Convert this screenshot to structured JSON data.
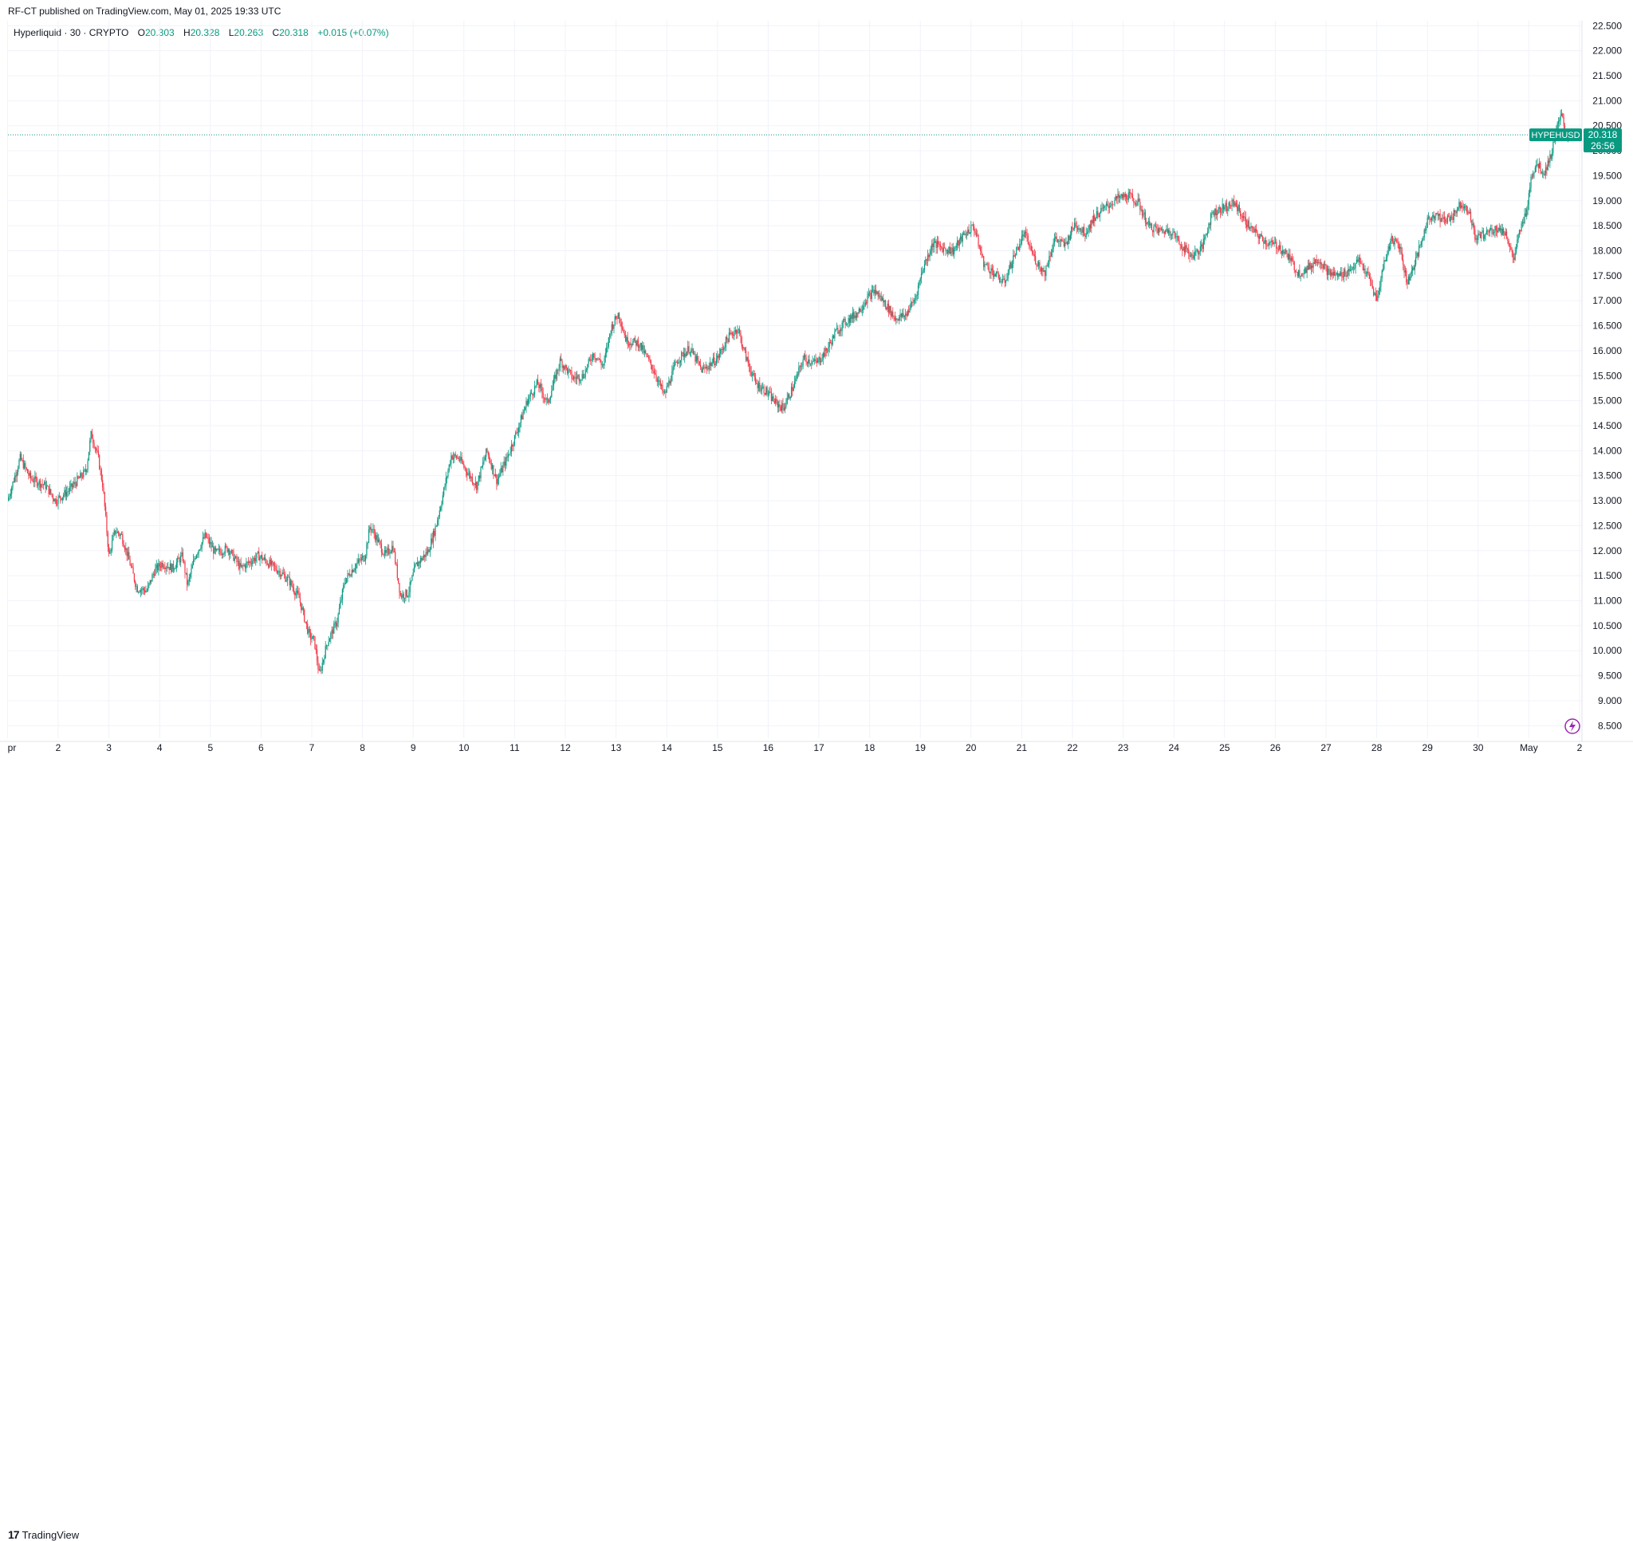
{
  "header": {
    "published_text": "RF-CT published on TradingView.com, May 01, 2025 19:33 UTC"
  },
  "legend": {
    "symbol_text": "Hyperliquid · 30 · CRYPTO",
    "o_key": "O",
    "o_val": "20.303",
    "h_key": "H",
    "h_val": "20.328",
    "l_key": "L",
    "l_val": "20.263",
    "c_key": "C",
    "c_val": "20.318",
    "change": "+0.015 (+0.07%)"
  },
  "price_tag": {
    "symbol": "HYPEHUSD",
    "price": "20.318",
    "countdown": "26:56"
  },
  "footer": {
    "brand": "TradingView",
    "brand_mark": "17"
  },
  "colors": {
    "up": "#089981",
    "down": "#f23645",
    "grid": "#f0f3fa",
    "axis_text": "#131722",
    "tag_bg": "#089981"
  },
  "chart_data": {
    "type": "line",
    "subtype": "candlestick",
    "symbol": "HYPEHUSD",
    "interval": "30",
    "ylim": [
      8.25,
      22.6
    ],
    "y_ticks": [
      "8.500",
      "9.000",
      "9.500",
      "10.000",
      "10.500",
      "11.000",
      "11.500",
      "12.000",
      "12.500",
      "13.000",
      "13.500",
      "14.000",
      "14.500",
      "15.000",
      "15.500",
      "16.000",
      "16.500",
      "17.000",
      "17.500",
      "18.000",
      "18.500",
      "19.000",
      "19.500",
      "20.000",
      "20.500",
      "21.000",
      "21.500",
      "22.000",
      "22.500"
    ],
    "x_ticks": [
      "pr",
      "2",
      "3",
      "4",
      "5",
      "6",
      "7",
      "8",
      "9",
      "10",
      "11",
      "12",
      "13",
      "14",
      "15",
      "16",
      "17",
      "18",
      "19",
      "20",
      "21",
      "22",
      "23",
      "24",
      "25",
      "26",
      "27",
      "28",
      "29",
      "30",
      "May",
      "2"
    ],
    "x_day_start": 1,
    "x_day_end": 32,
    "grid": true,
    "anchors": [
      [
        1.0,
        13.0
      ],
      [
        1.25,
        13.85
      ],
      [
        1.45,
        13.45
      ],
      [
        1.75,
        13.3
      ],
      [
        1.95,
        13.0
      ],
      [
        2.2,
        13.2
      ],
      [
        2.55,
        13.6
      ],
      [
        2.65,
        14.35
      ],
      [
        2.78,
        13.9
      ],
      [
        2.88,
        13.3
      ],
      [
        3.0,
        11.9
      ],
      [
        3.12,
        12.4
      ],
      [
        3.25,
        12.3
      ],
      [
        3.4,
        11.8
      ],
      [
        3.55,
        11.25
      ],
      [
        3.75,
        11.2
      ],
      [
        3.9,
        11.6
      ],
      [
        4.05,
        11.75
      ],
      [
        4.25,
        11.65
      ],
      [
        4.45,
        11.9
      ],
      [
        4.55,
        11.3
      ],
      [
        4.7,
        11.9
      ],
      [
        4.9,
        12.3
      ],
      [
        5.1,
        11.95
      ],
      [
        5.35,
        12.05
      ],
      [
        5.6,
        11.65
      ],
      [
        5.95,
        11.9
      ],
      [
        6.15,
        11.75
      ],
      [
        6.35,
        11.6
      ],
      [
        6.55,
        11.4
      ],
      [
        6.75,
        11.05
      ],
      [
        6.95,
        10.3
      ],
      [
        7.05,
        10.2
      ],
      [
        7.15,
        9.5
      ],
      [
        7.3,
        10.15
      ],
      [
        7.5,
        10.6
      ],
      [
        7.65,
        11.4
      ],
      [
        7.85,
        11.7
      ],
      [
        8.05,
        11.9
      ],
      [
        8.15,
        12.5
      ],
      [
        8.3,
        12.2
      ],
      [
        8.45,
        11.9
      ],
      [
        8.6,
        12.1
      ],
      [
        8.75,
        11.1
      ],
      [
        8.9,
        11.15
      ],
      [
        9.05,
        11.7
      ],
      [
        9.3,
        12.0
      ],
      [
        9.45,
        12.5
      ],
      [
        9.55,
        12.95
      ],
      [
        9.75,
        13.9
      ],
      [
        9.9,
        13.85
      ],
      [
        10.05,
        13.6
      ],
      [
        10.25,
        13.3
      ],
      [
        10.45,
        14.0
      ],
      [
        10.65,
        13.4
      ],
      [
        10.85,
        13.85
      ],
      [
        11.05,
        14.4
      ],
      [
        11.25,
        15.0
      ],
      [
        11.45,
        15.35
      ],
      [
        11.65,
        14.95
      ],
      [
        11.9,
        15.8
      ],
      [
        12.15,
        15.45
      ],
      [
        12.35,
        15.5
      ],
      [
        12.55,
        15.95
      ],
      [
        12.75,
        15.7
      ],
      [
        12.9,
        16.45
      ],
      [
        13.05,
        16.75
      ],
      [
        13.2,
        16.2
      ],
      [
        13.45,
        16.15
      ],
      [
        13.75,
        15.6
      ],
      [
        13.95,
        15.1
      ],
      [
        14.2,
        15.8
      ],
      [
        14.45,
        16.05
      ],
      [
        14.7,
        15.6
      ],
      [
        15.0,
        15.85
      ],
      [
        15.2,
        16.25
      ],
      [
        15.4,
        16.45
      ],
      [
        15.55,
        15.9
      ],
      [
        15.75,
        15.35
      ],
      [
        15.95,
        15.2
      ],
      [
        16.15,
        14.95
      ],
      [
        16.3,
        14.85
      ],
      [
        16.5,
        15.3
      ],
      [
        16.7,
        15.85
      ],
      [
        16.95,
        15.75
      ],
      [
        17.15,
        16.0
      ],
      [
        17.35,
        16.4
      ],
      [
        17.55,
        16.6
      ],
      [
        17.75,
        16.75
      ],
      [
        17.95,
        17.05
      ],
      [
        18.1,
        17.2
      ],
      [
        18.3,
        16.95
      ],
      [
        18.5,
        16.65
      ],
      [
        18.7,
        16.7
      ],
      [
        18.9,
        17.05
      ],
      [
        19.05,
        17.65
      ],
      [
        19.25,
        18.15
      ],
      [
        19.45,
        18.05
      ],
      [
        19.65,
        18.0
      ],
      [
        19.85,
        18.3
      ],
      [
        20.05,
        18.5
      ],
      [
        20.25,
        17.75
      ],
      [
        20.45,
        17.55
      ],
      [
        20.65,
        17.35
      ],
      [
        20.85,
        17.9
      ],
      [
        21.05,
        18.35
      ],
      [
        21.25,
        17.85
      ],
      [
        21.45,
        17.55
      ],
      [
        21.65,
        18.25
      ],
      [
        21.85,
        18.1
      ],
      [
        22.05,
        18.55
      ],
      [
        22.25,
        18.35
      ],
      [
        22.45,
        18.7
      ],
      [
        22.7,
        18.9
      ],
      [
        22.9,
        19.05
      ],
      [
        23.1,
        19.1
      ],
      [
        23.3,
        18.95
      ],
      [
        23.5,
        18.5
      ],
      [
        23.7,
        18.4
      ],
      [
        23.95,
        18.4
      ],
      [
        24.15,
        18.1
      ],
      [
        24.35,
        17.9
      ],
      [
        24.55,
        18.05
      ],
      [
        24.75,
        18.75
      ],
      [
        24.95,
        18.85
      ],
      [
        25.2,
        18.95
      ],
      [
        25.4,
        18.6
      ],
      [
        25.6,
        18.35
      ],
      [
        25.85,
        18.15
      ],
      [
        26.05,
        18.1
      ],
      [
        26.25,
        17.9
      ],
      [
        26.45,
        17.55
      ],
      [
        26.65,
        17.65
      ],
      [
        26.85,
        17.85
      ],
      [
        27.05,
        17.55
      ],
      [
        27.25,
        17.5
      ],
      [
        27.45,
        17.6
      ],
      [
        27.65,
        17.8
      ],
      [
        27.85,
        17.45
      ],
      [
        28.0,
        17.0
      ],
      [
        28.15,
        17.8
      ],
      [
        28.3,
        18.25
      ],
      [
        28.45,
        18.1
      ],
      [
        28.6,
        17.35
      ],
      [
        28.8,
        17.9
      ],
      [
        29.0,
        18.6
      ],
      [
        29.15,
        18.75
      ],
      [
        29.3,
        18.6
      ],
      [
        29.5,
        18.7
      ],
      [
        29.65,
        18.95
      ],
      [
        29.8,
        18.85
      ],
      [
        29.95,
        18.25
      ],
      [
        30.15,
        18.35
      ],
      [
        30.35,
        18.45
      ],
      [
        30.55,
        18.35
      ],
      [
        30.7,
        17.8
      ],
      [
        30.8,
        18.3
      ],
      [
        30.95,
        18.8
      ],
      [
        31.05,
        19.5
      ],
      [
        31.15,
        19.75
      ],
      [
        31.3,
        19.55
      ],
      [
        31.45,
        19.95
      ],
      [
        31.55,
        20.45
      ],
      [
        31.65,
        20.7
      ],
      [
        31.72,
        20.3
      ],
      [
        31.82,
        20.318
      ]
    ]
  }
}
